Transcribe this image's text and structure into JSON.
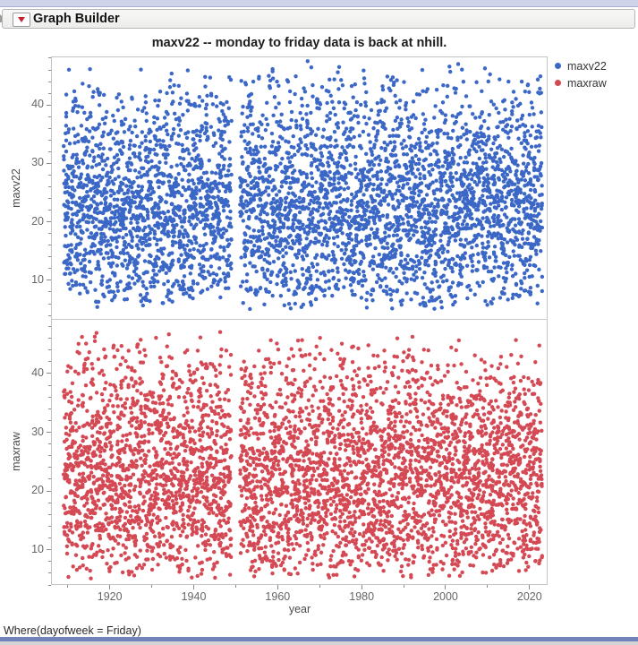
{
  "window": {
    "header": {
      "title": "Graph Builder"
    },
    "status_bar": "Where(dayofweek = Friday)"
  },
  "colors": {
    "maxv22_blue": "#3B67C6",
    "maxraw_red": "#D44954",
    "menu_triangle_red": "#C42430",
    "bottom_band_blue": "#7282BB",
    "tick_text": "#666666",
    "frame_gray": "#C4C4C4"
  },
  "chart_data": {
    "type": "scatter",
    "title": "maxv22 -- monday to friday data is back at nhill.",
    "xlabel": "year",
    "x_axis": {
      "domain": [
        1906,
        2024.3
      ],
      "major_ticks": [
        1920,
        1940,
        1960,
        1980,
        2000,
        2020
      ],
      "minor_tick_step": 10,
      "minor_range": [
        1910,
        2020
      ]
    },
    "panels": [
      {
        "name": "maxv22",
        "ylabel": "maxv22",
        "color": "#3B67C6",
        "y_domain": [
          3.4,
          48.3
        ],
        "y_major_ticks": [
          10,
          20,
          30,
          40
        ],
        "y_minor_step": 2
      },
      {
        "name": "maxraw",
        "ylabel": "maxraw",
        "color": "#D44954",
        "y_domain": [
          4.0,
          49.3
        ],
        "y_major_ticks": [
          10,
          20,
          30,
          40
        ],
        "y_minor_step": 2
      }
    ],
    "legend": [
      {
        "label": "maxv22",
        "color": "#3B67C6"
      },
      {
        "label": "maxraw",
        "color": "#D44954"
      }
    ],
    "points": {
      "note": "weekly Friday observations 1910-2022, dense skewed band ~8-38 with sparse tail to ~47, gap at 1949-1950",
      "year_start": 1909,
      "year_end": 2022,
      "missing_years": [
        1949,
        1950
      ],
      "per_year": 40,
      "value_min": 5,
      "value_max": 47.5,
      "skew_power": 1.25,
      "seeds": [
        420421,
        971337
      ]
    }
  }
}
